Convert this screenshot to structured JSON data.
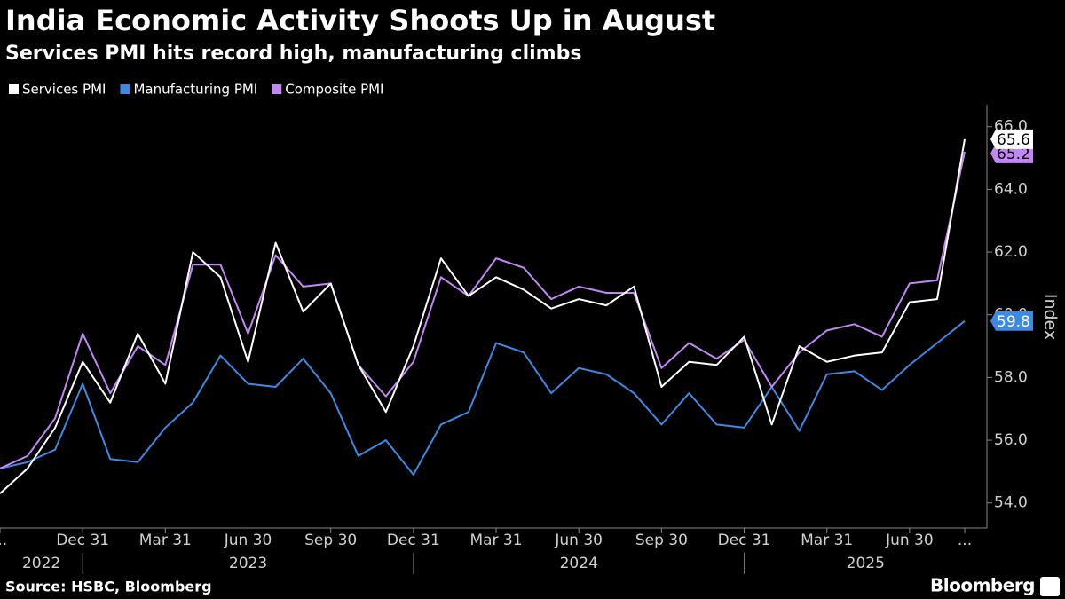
{
  "chart_data": {
    "type": "line",
    "title": "India Economic Activity Shoots Up in August",
    "subtitle": "Services PMI hits record high, manufacturing climbs",
    "y_label": "Index",
    "source": "Source: HSBC, Bloomberg",
    "logo": "Bloomberg",
    "x": [
      "2022-09",
      "2022-10",
      "2022-11",
      "2022-12",
      "2023-01",
      "2023-02",
      "2023-03",
      "2023-04",
      "2023-05",
      "2023-06",
      "2023-07",
      "2023-08",
      "2023-09",
      "2023-10",
      "2023-11",
      "2023-12",
      "2024-01",
      "2024-02",
      "2024-03",
      "2024-04",
      "2024-05",
      "2024-06",
      "2024-07",
      "2024-08",
      "2024-09",
      "2024-10",
      "2024-11",
      "2024-12",
      "2025-01",
      "2025-02",
      "2025-03",
      "2025-04",
      "2025-05",
      "2025-06",
      "2025-07",
      "2025-08"
    ],
    "xticks": [
      {
        "value": "2022-09",
        "label": "..."
      },
      {
        "value": "2022-12",
        "label": "Dec 31"
      },
      {
        "value": "2023-03",
        "label": "Mar 31"
      },
      {
        "value": "2023-06",
        "label": "Jun 30"
      },
      {
        "value": "2023-09",
        "label": "Sep 30"
      },
      {
        "value": "2023-12",
        "label": "Dec 31"
      },
      {
        "value": "2024-03",
        "label": "Mar 31"
      },
      {
        "value": "2024-06",
        "label": "Jun 30"
      },
      {
        "value": "2024-09",
        "label": "Sep 30"
      },
      {
        "value": "2024-12",
        "label": "Dec 31"
      },
      {
        "value": "2025-03",
        "label": "Mar 31"
      },
      {
        "value": "2025-06",
        "label": "Jun 30"
      },
      {
        "value": "2025-08",
        "label": "..."
      }
    ],
    "xgroups": [
      "2022",
      "2023",
      "2024",
      "2025"
    ],
    "ylim": [
      53.2,
      66.7
    ],
    "yticks": [
      {
        "value": 54,
        "label": "54.0"
      },
      {
        "value": 56,
        "label": "56.0"
      },
      {
        "value": 58,
        "label": "58.0"
      },
      {
        "value": 60,
        "label": "60.0"
      },
      {
        "value": 62,
        "label": "62.0"
      },
      {
        "value": 64,
        "label": "64.0"
      },
      {
        "value": 66,
        "label": "66.0"
      }
    ],
    "y_axis_side": "right",
    "grid": false,
    "legend": "top-left",
    "series": [
      {
        "name": "Services PMI",
        "color": "#ffffff",
        "label_text_color": "#000000",
        "values": [
          54.3,
          55.1,
          56.4,
          58.5,
          57.2,
          59.4,
          57.8,
          62.0,
          61.2,
          58.5,
          62.3,
          60.1,
          61.0,
          58.4,
          56.9,
          59.0,
          61.8,
          60.6,
          61.2,
          60.8,
          60.2,
          60.5,
          60.3,
          60.9,
          57.7,
          58.5,
          58.4,
          59.3,
          56.5,
          59.0,
          58.5,
          58.7,
          58.8,
          60.4,
          60.5,
          65.6
        ],
        "last_label": "65.6"
      },
      {
        "name": "Manufacturing PMI",
        "color": "#3d8ae6",
        "label_text_color": "#ffffff",
        "values": [
          55.1,
          55.3,
          55.7,
          57.8,
          55.4,
          55.3,
          56.4,
          57.2,
          58.7,
          57.8,
          57.7,
          58.6,
          57.5,
          55.5,
          56.0,
          54.9,
          56.5,
          56.9,
          59.1,
          58.8,
          57.5,
          58.3,
          58.1,
          57.5,
          56.5,
          57.5,
          56.5,
          56.4,
          57.7,
          56.3,
          58.1,
          58.2,
          57.6,
          58.4,
          59.1,
          59.8
        ],
        "last_label": "59.8"
      },
      {
        "name": "Composite PMI",
        "color": "#c387f5",
        "label_text_color": "#000000",
        "values": [
          55.1,
          55.5,
          56.7,
          59.4,
          57.5,
          59.0,
          58.4,
          61.6,
          61.6,
          59.4,
          61.9,
          60.9,
          61.0,
          58.4,
          57.4,
          58.5,
          61.2,
          60.6,
          61.8,
          61.5,
          60.5,
          60.9,
          60.7,
          60.7,
          58.3,
          59.1,
          58.6,
          59.2,
          57.7,
          58.8,
          59.5,
          59.7,
          59.3,
          61.0,
          61.1,
          65.2
        ],
        "last_label": "65.2"
      }
    ]
  }
}
